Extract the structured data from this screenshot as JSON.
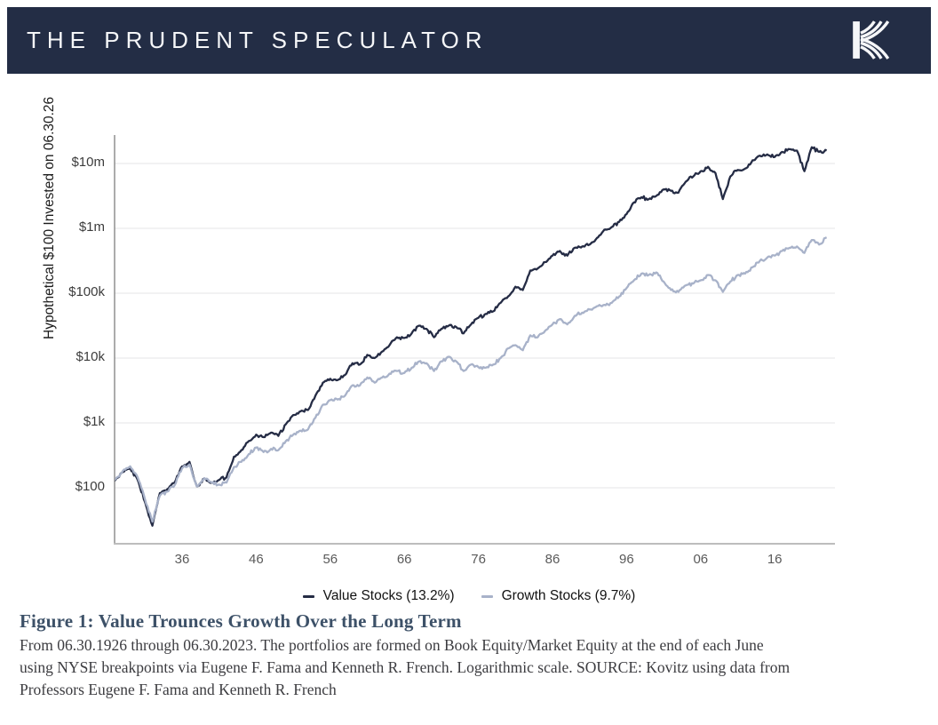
{
  "header": {
    "title": "THE PRUDENT SPECULATOR",
    "logo_icon": "kovitz-k-logo",
    "bg_color": "#232d45",
    "text_color": "#f5f6f8"
  },
  "chart_data": {
    "type": "line",
    "title": "Figure 1: Value Trounces Growth Over the Long Term",
    "xlabel": "",
    "ylabel": "Hypothetical $100 Invested on 06.30.26",
    "y_scale": "log",
    "grid": true,
    "legend_position": "bottom",
    "x_start_year": 1926,
    "x_end_year": 2023,
    "frequency": "annual",
    "y_ticks": [
      {
        "label": "$10m",
        "value": 10000000
      },
      {
        "label": "$1m",
        "value": 1000000
      },
      {
        "label": "$100k",
        "value": 100000
      },
      {
        "label": "$10k",
        "value": 10000
      },
      {
        "label": "$1k",
        "value": 1000
      },
      {
        "label": "$100",
        "value": 100
      }
    ],
    "x_ticks": [
      {
        "label": "36",
        "year": 1936
      },
      {
        "label": "46",
        "year": 1946
      },
      {
        "label": "56",
        "year": 1956
      },
      {
        "label": "66",
        "year": 1966
      },
      {
        "label": "76",
        "year": 1976
      },
      {
        "label": "86",
        "year": 1986
      },
      {
        "label": "96",
        "year": 1996
      },
      {
        "label": "06",
        "year": 2006
      },
      {
        "label": "16",
        "year": 2016
      }
    ],
    "series": [
      {
        "name": "Value Stocks (13.2%)",
        "color": "#252c45",
        "cagr_pct": 13.2,
        "end_value_approx": 15800000,
        "values": [
          100,
          132,
          174,
          200,
          132,
          60,
          26,
          83,
          95,
          120,
          214,
          251,
          105,
          138,
          120,
          132,
          145,
          302,
          380,
          525,
          660,
          603,
          708,
          631,
          955,
          1320,
          1510,
          1580,
          2630,
          4170,
          4790,
          4570,
          5500,
          8320,
          7940,
          11200,
          10000,
          12600,
          15800,
          20900,
          20400,
          24000,
          31600,
          28200,
          20900,
          28200,
          31600,
          30200,
          24000,
          33100,
          41700,
          47900,
          52500,
          70800,
          89100,
          126000,
          112000,
          224000,
          240000,
          302000,
          380000,
          447000,
          380000,
          501000,
          525000,
          562000,
          708000,
          955000,
          1050000,
          1260000,
          1660000,
          2510000,
          3020000,
          2820000,
          3160000,
          3980000,
          3800000,
          3550000,
          5250000,
          6310000,
          7590000,
          8910000,
          7080000,
          2820000,
          6310000,
          7940000,
          8320000,
          11200000,
          13200000,
          13800000,
          12600000,
          15100000,
          16600000,
          15800000,
          7590000,
          17800000,
          15100000,
          15800000
        ]
      },
      {
        "name": "Growth Stocks (9.7%)",
        "color": "#a8b2c9",
        "cagr_pct": 9.7,
        "end_value_approx": 724000,
        "values": [
          100,
          135,
          182,
          214,
          145,
          66,
          30,
          76,
          87,
          110,
          200,
          229,
          105,
          141,
          120,
          112,
          120,
          209,
          251,
          331,
          417,
          355,
          398,
          380,
          525,
          660,
          759,
          794,
          1200,
          1910,
          2240,
          2290,
          2630,
          3800,
          3800,
          5010,
          4170,
          5010,
          5750,
          6310,
          5890,
          7080,
          8910,
          8320,
          6310,
          8910,
          10500,
          8910,
          6310,
          7940,
          7240,
          7080,
          7940,
          10000,
          14100,
          15800,
          13200,
          22400,
          20900,
          26300,
          33100,
          39800,
          33100,
          44700,
          50100,
          56200,
          63100,
          66100,
          70800,
          89100,
          120000,
          158000,
          200000,
          191000,
          209000,
          151000,
          112000,
          105000,
          132000,
          141000,
          158000,
          191000,
          158000,
          105000,
          151000,
          191000,
          200000,
          251000,
          316000,
          355000,
          380000,
          447000,
          501000,
          525000,
          417000,
          661000,
          562000,
          724000
        ]
      }
    ]
  },
  "figure": {
    "title": "Figure 1: Value Trounces Growth Over the Long Term",
    "caption_lines": [
      "From 06.30.1926 through 06.30.2023. The portfolios are formed on Book Equity/Market Equity at the end of each June",
      "using NYSE breakpoints via Eugene F. Fama and Kenneth R. French. Logarithmic scale. SOURCE: Kovitz using data from",
      "Professors Eugene F. Fama and Kenneth R. French"
    ]
  }
}
